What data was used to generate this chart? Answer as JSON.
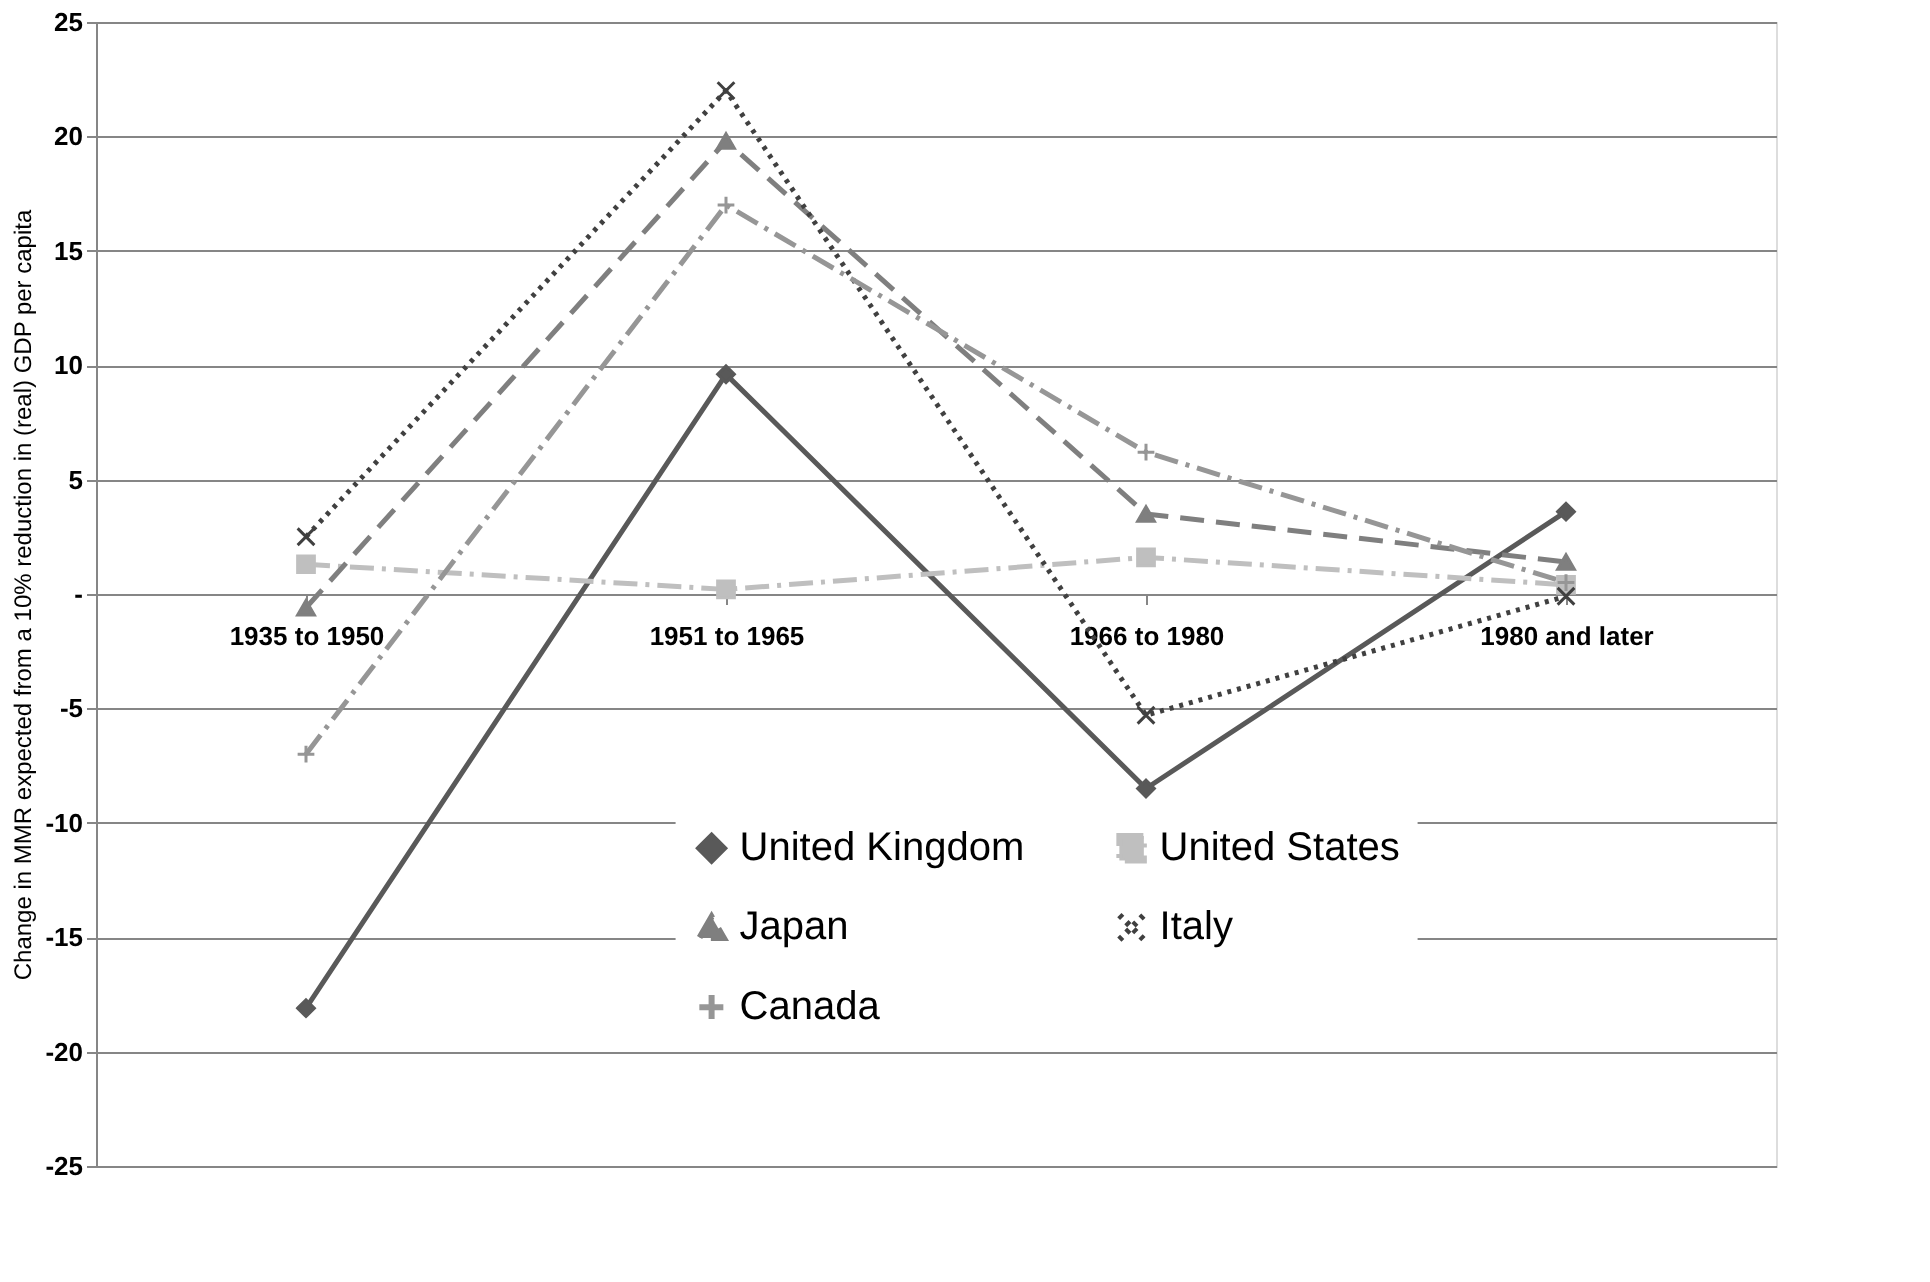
{
  "chart_data": {
    "type": "line",
    "ylabel": "Change in MMR expected from a 10% reduction in (real) GDP per capita",
    "categories": [
      "1935 to 1950",
      "1951 to 1965",
      "1966 to 1980",
      "1980 and later"
    ],
    "series": [
      {
        "name": "United Kingdom",
        "color": "#595959",
        "marker": "diamond",
        "line_style": "solid",
        "values": [
          -18.1,
          9.6,
          -8.5,
          3.6
        ]
      },
      {
        "name": "United States",
        "color": "#bfbfbf",
        "marker": "square",
        "line_style": "dashdot",
        "values": [
          1.3,
          0.2,
          1.6,
          0.4
        ]
      },
      {
        "name": "Japan",
        "color": "#7f7f7f",
        "marker": "triangle",
        "line_style": "dashed",
        "values": [
          -0.6,
          19.8,
          3.5,
          1.4
        ]
      },
      {
        "name": "Italy",
        "color": "#404040",
        "marker": "cross",
        "line_style": "dotted",
        "values": [
          2.5,
          22.0,
          -5.3,
          -0.1
        ]
      },
      {
        "name": "Canada",
        "color": "#969696",
        "marker": "plus",
        "line_style": "dashdot",
        "values": [
          -7.0,
          17.0,
          6.2,
          0.5
        ]
      }
    ],
    "ylim": [
      -25,
      25
    ],
    "yticks": [
      -25,
      -20,
      -15,
      -10,
      -5,
      {
        "value": 0,
        "label": "-"
      },
      5,
      10,
      15,
      20,
      25
    ],
    "grid": "y",
    "legend": "bottom right"
  }
}
